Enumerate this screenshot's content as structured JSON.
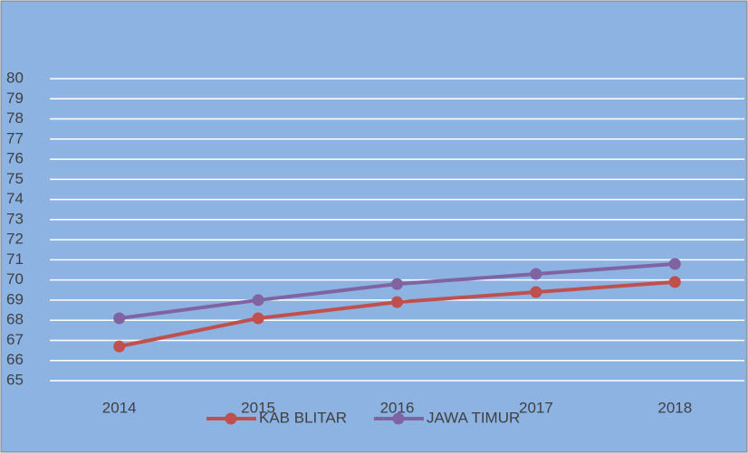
{
  "chart_data": {
    "type": "line",
    "categories": [
      "2014",
      "2015",
      "2016",
      "2017",
      "2018"
    ],
    "series": [
      {
        "name": "KAB BLITAR",
        "color": "#c0504d",
        "values": [
          66.7,
          68.1,
          68.9,
          69.4,
          69.9
        ]
      },
      {
        "name": "JAWA TIMUR",
        "color": "#8064a2",
        "values": [
          68.1,
          69.0,
          69.8,
          70.3,
          70.8
        ]
      }
    ],
    "ylim": [
      65,
      80
    ],
    "yticks": [
      65,
      66,
      67,
      68,
      69,
      70,
      71,
      72,
      73,
      74,
      75,
      76,
      77,
      78,
      79,
      80
    ],
    "grid": true,
    "legend": "bottom",
    "background": "#8db3e2"
  }
}
